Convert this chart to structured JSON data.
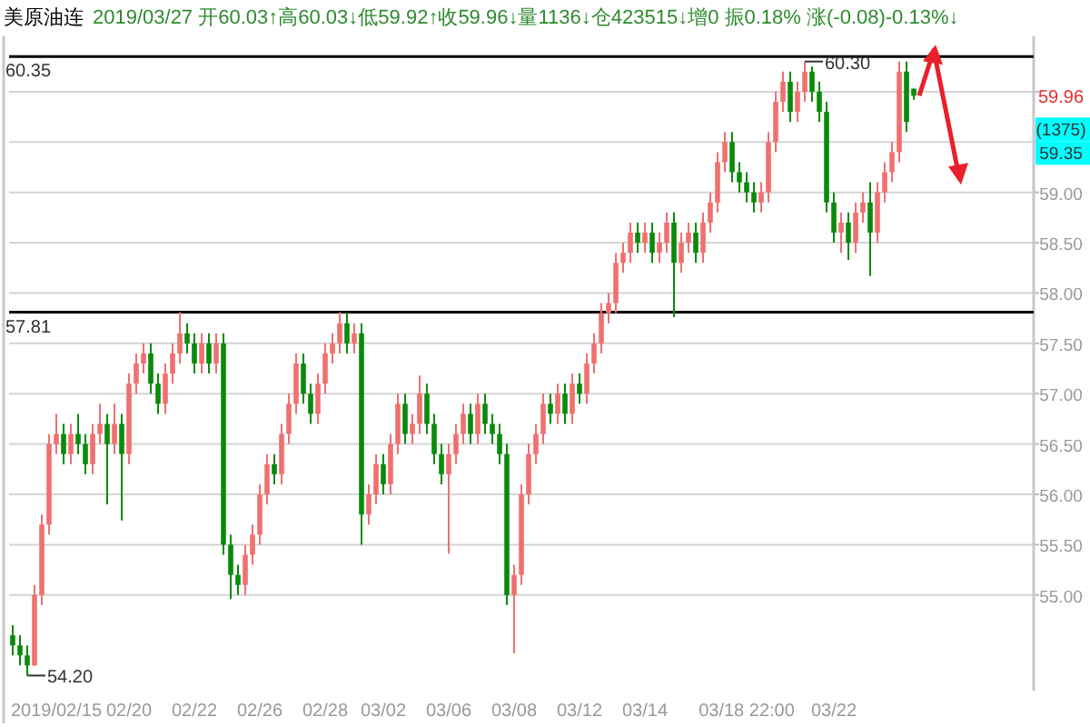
{
  "chart_data": {
    "type": "candlestick",
    "title": "美原油连",
    "subtitle": "2019/03/27 开60.03↑高60.03↓低59.92↑收59.96↓量1136↓仓423515↓增0 振0.18% 涨(-0.08)-0.13%↓",
    "categories": [
      null,
      null,
      null,
      null,
      null,
      null,
      "2019/02/15",
      null,
      null,
      null,
      null,
      null,
      null,
      null,
      null,
      null,
      "02/20",
      null,
      null,
      null,
      null,
      null,
      null,
      null,
      null,
      "02/22",
      null,
      null,
      null,
      null,
      null,
      null,
      null,
      null,
      "02/26",
      null,
      null,
      null,
      null,
      null,
      null,
      null,
      null,
      "02/28",
      null,
      null,
      null,
      null,
      null,
      null,
      null,
      "03/02",
      null,
      null,
      null,
      null,
      null,
      null,
      null,
      null,
      "03/06",
      null,
      null,
      null,
      null,
      null,
      null,
      null,
      null,
      "03/08",
      null,
      null,
      null,
      null,
      null,
      null,
      null,
      null,
      "03/12",
      null,
      null,
      null,
      null,
      null,
      null,
      null,
      null,
      "03/14",
      null,
      null,
      null,
      null,
      null,
      null,
      null,
      null,
      null,
      null,
      null,
      null,
      null,
      "03/18 22:00",
      null,
      null,
      null,
      null,
      null,
      null,
      null,
      null,
      null,
      null,
      null,
      "03/22",
      null,
      null,
      null,
      null,
      null,
      null,
      null,
      null,
      null,
      null,
      null,
      null,
      null,
      null,
      null,
      null,
      null,
      null,
      null,
      null,
      null,
      null,
      null,
      null,
      null,
      null,
      null
    ],
    "ohlc": [
      [
        54.6,
        54.7,
        54.4,
        54.5
      ],
      [
        54.5,
        54.6,
        54.3,
        54.4
      ],
      [
        54.4,
        54.5,
        54.2,
        54.3
      ],
      [
        54.3,
        55.1,
        54.3,
        55.0
      ],
      [
        55.0,
        55.8,
        54.9,
        55.7
      ],
      [
        55.7,
        56.6,
        55.6,
        56.5
      ],
      [
        56.5,
        56.8,
        56.4,
        56.6
      ],
      [
        56.6,
        56.7,
        56.3,
        56.4
      ],
      [
        56.4,
        56.7,
        56.3,
        56.6
      ],
      [
        56.6,
        56.8,
        56.4,
        56.5
      ],
      [
        56.5,
        56.6,
        56.2,
        56.3
      ],
      [
        56.3,
        56.7,
        56.2,
        56.6
      ],
      [
        56.6,
        56.9,
        56.5,
        56.7
      ],
      [
        56.7,
        56.8,
        55.9,
        56.5
      ],
      [
        56.5,
        56.9,
        56.4,
        56.7
      ],
      [
        56.7,
        56.8,
        55.74,
        56.4
      ],
      [
        56.4,
        57.2,
        56.3,
        57.1
      ],
      [
        57.1,
        57.4,
        57.0,
        57.3
      ],
      [
        57.3,
        57.5,
        57.2,
        57.4
      ],
      [
        57.4,
        57.5,
        57.0,
        57.1
      ],
      [
        57.1,
        57.2,
        56.8,
        56.9
      ],
      [
        56.9,
        57.3,
        56.8,
        57.2
      ],
      [
        57.2,
        57.5,
        57.1,
        57.4
      ],
      [
        57.4,
        57.81,
        57.3,
        57.6
      ],
      [
        57.6,
        57.7,
        57.4,
        57.5
      ],
      [
        57.5,
        57.6,
        57.2,
        57.3
      ],
      [
        57.3,
        57.6,
        57.2,
        57.5
      ],
      [
        57.5,
        57.6,
        57.2,
        57.3
      ],
      [
        57.3,
        57.6,
        57.2,
        57.5
      ],
      [
        57.5,
        57.6,
        55.4,
        55.5
      ],
      [
        55.5,
        55.6,
        54.96,
        55.2
      ],
      [
        55.2,
        55.3,
        55.0,
        55.1
      ],
      [
        55.1,
        55.5,
        55.0,
        55.4
      ],
      [
        55.4,
        55.7,
        55.3,
        55.6
      ],
      [
        55.6,
        56.1,
        55.5,
        56.0
      ],
      [
        56.0,
        56.4,
        55.9,
        56.3
      ],
      [
        56.3,
        56.4,
        56.1,
        56.2
      ],
      [
        56.2,
        56.7,
        56.1,
        56.6
      ],
      [
        56.6,
        57.0,
        56.5,
        56.9
      ],
      [
        56.9,
        57.4,
        56.8,
        57.3
      ],
      [
        57.3,
        57.4,
        56.9,
        57.0
      ],
      [
        57.0,
        57.1,
        56.7,
        56.8
      ],
      [
        56.8,
        57.2,
        56.7,
        57.1
      ],
      [
        57.1,
        57.5,
        57.0,
        57.4
      ],
      [
        57.4,
        57.6,
        57.3,
        57.5
      ],
      [
        57.5,
        57.81,
        57.4,
        57.7
      ],
      [
        57.7,
        57.8,
        57.4,
        57.5
      ],
      [
        57.5,
        57.7,
        57.4,
        57.6
      ],
      [
        57.6,
        57.7,
        55.5,
        55.8
      ],
      [
        55.8,
        56.1,
        55.7,
        56.0
      ],
      [
        56.0,
        56.4,
        55.9,
        56.3
      ],
      [
        56.3,
        56.4,
        56.0,
        56.1
      ],
      [
        56.1,
        56.6,
        56.0,
        56.5
      ],
      [
        56.5,
        57.0,
        56.4,
        56.9
      ],
      [
        56.9,
        57.0,
        56.5,
        56.6
      ],
      [
        56.6,
        56.8,
        56.5,
        56.7
      ],
      [
        56.7,
        57.18,
        56.6,
        57.0
      ],
      [
        57.0,
        57.1,
        56.6,
        56.7
      ],
      [
        56.7,
        56.8,
        56.3,
        56.4
      ],
      [
        56.4,
        56.5,
        56.1,
        56.2
      ],
      [
        56.2,
        56.5,
        55.41,
        56.4
      ],
      [
        56.4,
        56.7,
        56.3,
        56.6
      ],
      [
        56.6,
        56.9,
        56.5,
        56.8
      ],
      [
        56.8,
        56.9,
        56.5,
        56.6
      ],
      [
        56.6,
        57.0,
        56.5,
        56.9
      ],
      [
        56.9,
        57.0,
        56.6,
        56.7
      ],
      [
        56.7,
        56.8,
        56.5,
        56.6
      ],
      [
        56.6,
        56.7,
        56.3,
        56.4
      ],
      [
        56.4,
        56.5,
        54.9,
        55.0
      ],
      [
        55.0,
        55.3,
        54.42,
        55.2
      ],
      [
        55.2,
        56.1,
        55.1,
        56.0
      ],
      [
        56.0,
        56.5,
        55.9,
        56.4
      ],
      [
        56.4,
        56.7,
        56.3,
        56.6
      ],
      [
        56.6,
        57.0,
        56.5,
        56.9
      ],
      [
        56.9,
        57.0,
        56.7,
        56.8
      ],
      [
        56.8,
        57.1,
        56.7,
        57.0
      ],
      [
        57.0,
        57.1,
        56.7,
        56.8
      ],
      [
        56.8,
        57.2,
        56.7,
        57.1
      ],
      [
        57.1,
        57.2,
        56.9,
        57.0
      ],
      [
        57.0,
        57.4,
        56.9,
        57.3
      ],
      [
        57.3,
        57.6,
        57.2,
        57.5
      ],
      [
        57.5,
        57.9,
        57.4,
        57.8
      ],
      [
        57.8,
        58.0,
        57.7,
        57.9
      ],
      [
        57.9,
        58.4,
        57.8,
        58.3
      ],
      [
        58.3,
        58.5,
        58.2,
        58.4
      ],
      [
        58.4,
        58.7,
        58.3,
        58.6
      ],
      [
        58.6,
        58.7,
        58.4,
        58.5
      ],
      [
        58.5,
        58.7,
        58.4,
        58.6
      ],
      [
        58.6,
        58.7,
        58.3,
        58.4
      ],
      [
        58.4,
        58.6,
        58.3,
        58.5
      ],
      [
        58.5,
        58.8,
        58.4,
        58.7
      ],
      [
        58.7,
        58.8,
        57.76,
        58.3
      ],
      [
        58.3,
        58.6,
        58.2,
        58.5
      ],
      [
        58.5,
        58.7,
        58.4,
        58.6
      ],
      [
        58.6,
        58.7,
        58.3,
        58.4
      ],
      [
        58.4,
        58.8,
        58.3,
        58.7
      ],
      [
        58.7,
        59.0,
        58.6,
        58.9
      ],
      [
        58.9,
        59.4,
        58.8,
        59.3
      ],
      [
        59.3,
        59.6,
        59.2,
        59.5
      ],
      [
        59.5,
        59.6,
        59.1,
        59.2
      ],
      [
        59.2,
        59.3,
        59.0,
        59.1
      ],
      [
        59.1,
        59.2,
        58.9,
        59.0
      ],
      [
        59.0,
        59.1,
        58.8,
        58.9
      ],
      [
        58.9,
        59.1,
        58.8,
        59.0
      ],
      [
        59.0,
        59.6,
        58.9,
        59.5
      ],
      [
        59.5,
        60.0,
        59.4,
        59.9
      ],
      [
        59.9,
        60.2,
        59.8,
        60.1
      ],
      [
        60.1,
        60.2,
        59.7,
        59.8
      ],
      [
        59.8,
        60.1,
        59.7,
        60.0
      ],
      [
        60.0,
        60.3,
        59.9,
        60.2
      ],
      [
        60.2,
        60.25,
        59.9,
        60.0
      ],
      [
        60.0,
        60.1,
        59.7,
        59.8
      ],
      [
        59.8,
        59.9,
        58.8,
        58.9
      ],
      [
        58.9,
        59.0,
        58.5,
        58.6
      ],
      [
        58.6,
        58.8,
        58.4,
        58.7
      ],
      [
        58.7,
        58.8,
        58.33,
        58.5
      ],
      [
        58.5,
        58.9,
        58.4,
        58.8
      ],
      [
        58.8,
        59.0,
        58.7,
        58.9
      ],
      [
        58.9,
        59.1,
        58.17,
        58.6
      ],
      [
        58.6,
        59.1,
        58.5,
        59.0
      ],
      [
        59.0,
        59.3,
        58.9,
        59.2
      ],
      [
        59.2,
        59.5,
        59.1,
        59.4
      ],
      [
        59.4,
        60.3,
        59.3,
        60.2
      ],
      [
        60.2,
        60.3,
        59.6,
        59.7
      ],
      [
        60.03,
        60.03,
        59.92,
        59.96
      ],
      null,
      null,
      null,
      null,
      null,
      null,
      null,
      null,
      null,
      null,
      null,
      null,
      null,
      null,
      null,
      null
    ],
    "ylim": [
      54.05,
      60.55
    ],
    "yticks": [
      {
        "value": 55,
        "label": "55.00"
      },
      {
        "value": 55.5,
        "label": "55.50"
      },
      {
        "value": 56,
        "label": "56.00"
      },
      {
        "value": 56.5,
        "label": "56.50"
      },
      {
        "value": 57,
        "label": "57.00"
      },
      {
        "value": 57.5,
        "label": "57.50"
      },
      {
        "value": 58,
        "label": "58.00"
      },
      {
        "value": 58.5,
        "label": "58.50"
      },
      {
        "value": 59,
        "label": "59.00"
      },
      {
        "value": 59.5,
        "label": null
      },
      {
        "value": 60,
        "label": null
      }
    ],
    "grid": "y",
    "ref_lines": [
      {
        "axis": "y",
        "value": 60.35,
        "label": "60.35",
        "color": "#000000"
      },
      {
        "axis": "y",
        "value": 57.81,
        "label": "57.81",
        "color": "#000000"
      }
    ],
    "annotations": [
      {
        "text": "60.30",
        "y": 60.3
      },
      "54.20",
      "59.96",
      "(1375)",
      "59.35"
    ]
  }
}
